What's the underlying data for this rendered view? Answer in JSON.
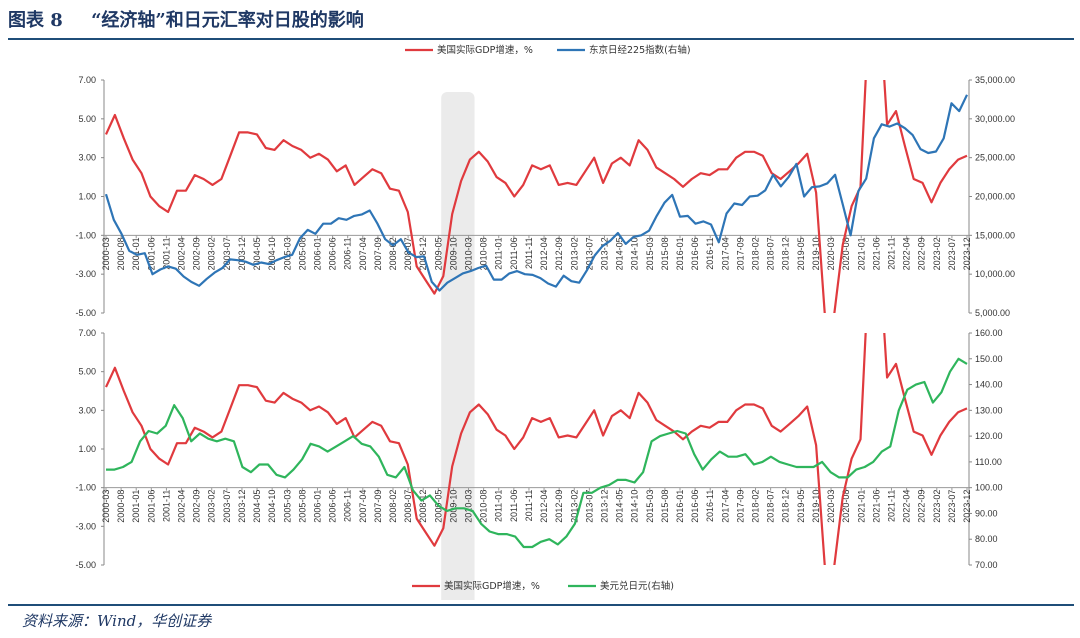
{
  "header": {
    "figure_label": "图表 8",
    "title": "“经济轴”和日元汇率对日股的影响"
  },
  "source": "资料来源：Wind，华创证券",
  "colors": {
    "red": "#e03a3e",
    "blue": "#2e75b6",
    "green": "#2fb55c",
    "title": "#1f3864",
    "shade": "#ebebeb"
  },
  "chart_data": [
    {
      "type": "line",
      "panel": "top",
      "legend": [
        "美国实际GDP增速，%",
        "东京日经225指数(右轴)"
      ],
      "left_ylim": [
        -5,
        7
      ],
      "left_ticks": [
        "7.00",
        "5.00",
        "3.00",
        "1.00",
        "-1.00",
        "-3.00",
        "-5.00"
      ],
      "right_ylim": [
        5000,
        35000
      ],
      "right_ticks": [
        "35,000.00",
        "30,000.00",
        "25,000.00",
        "20,000.00",
        "15,000.00",
        "10,000.00",
        "5,000.00"
      ],
      "x_labels": [
        "2000-03",
        "2000-08",
        "2001-01",
        "2001-06",
        "2001-11",
        "2002-04",
        "2002-09",
        "2003-02",
        "2003-07",
        "2003-12",
        "2004-05",
        "2004-10",
        "2005-03",
        "2005-08",
        "2006-01",
        "2006-06",
        "2006-11",
        "2007-04",
        "2007-09",
        "2008-02",
        "2008-07",
        "2008-12",
        "2009-05",
        "2009-10",
        "2010-03",
        "2010-08",
        "2011-01",
        "2011-06",
        "2011-11",
        "2012-04",
        "2012-09",
        "2013-02",
        "2013-07",
        "2013-12",
        "2014-05",
        "2014-10",
        "2015-03",
        "2015-08",
        "2016-01",
        "2016-06",
        "2016-11",
        "2017-04",
        "2017-09",
        "2018-02",
        "2018-07",
        "2018-12",
        "2019-05",
        "2019-10",
        "2020-03",
        "2020-08",
        "2021-01",
        "2021-06",
        "2021-11",
        "2022-04",
        "2022-09",
        "2023-02",
        "2023-07",
        "2023-12"
      ],
      "recession_shade": {
        "from": "2008-12",
        "to": "2010-03"
      },
      "series": [
        {
          "name": "美国实际GDP增速，%",
          "axis": "left",
          "color": "#e03a3e",
          "values": [
            4.2,
            5.2,
            4.0,
            2.9,
            2.2,
            1.0,
            0.5,
            0.2,
            1.3,
            1.3,
            2.1,
            1.9,
            1.6,
            1.9,
            3.1,
            4.3,
            4.3,
            4.2,
            3.5,
            3.4,
            3.9,
            3.6,
            3.4,
            3.0,
            3.2,
            2.9,
            2.3,
            2.6,
            1.6,
            2.0,
            2.4,
            2.2,
            1.4,
            1.3,
            0.2,
            -2.6,
            -3.3,
            -4.0,
            -3.1,
            0.1,
            1.8,
            2.9,
            3.3,
            2.8,
            2.0,
            1.7,
            1.0,
            1.6,
            2.6,
            2.4,
            2.6,
            1.6,
            1.7,
            1.6,
            2.3,
            3.0,
            1.7,
            2.7,
            3.0,
            2.6,
            3.9,
            3.4,
            2.5,
            2.2,
            1.9,
            1.5,
            1.9,
            2.2,
            2.1,
            2.4,
            2.4,
            3.0,
            3.3,
            3.3,
            3.1,
            2.2,
            1.9,
            2.3,
            2.7,
            3.2,
            1.2,
            -5.2,
            -5.2,
            -1.5,
            0.5,
            1.5,
            11.0,
            12.0,
            4.7,
            5.4,
            3.6,
            1.9,
            1.7,
            0.7,
            1.7,
            2.4,
            2.9,
            3.1
          ]
        },
        {
          "name": "东京日经225指数(右轴)",
          "axis": "right",
          "color": "#2e75b6",
          "values": [
            20300,
            17000,
            15200,
            13000,
            12500,
            12700,
            10000,
            10600,
            11000,
            10700,
            9700,
            9000,
            8500,
            9400,
            10200,
            10800,
            11900,
            11800,
            11600,
            11200,
            11500,
            11300,
            11800,
            12200,
            12500,
            14600,
            15700,
            15200,
            16500,
            16500,
            17200,
            17000,
            17500,
            17700,
            18200,
            16500,
            14500,
            13700,
            14500,
            12800,
            12200,
            12300,
            9000,
            7900,
            8900,
            9500,
            10100,
            10400,
            10800,
            11100,
            9300,
            9300,
            10100,
            10400,
            10000,
            9900,
            9500,
            8800,
            8400,
            9800,
            9100,
            8900,
            10500,
            12400,
            13600,
            14300,
            15300,
            13900,
            14800,
            15000,
            15600,
            17500,
            19200,
            20200,
            17400,
            17500,
            16500,
            16800,
            16400,
            14100,
            17800,
            19100,
            18900,
            20000,
            20100,
            20800,
            22800,
            21300,
            22500,
            24200,
            20000,
            21200,
            21300,
            21700,
            22800,
            18900,
            15000,
            20700,
            22300,
            27500,
            29300,
            29000,
            29400,
            28800,
            27900,
            26100,
            25600,
            25800,
            27500,
            32000,
            31000,
            33100
          ]
        }
      ]
    },
    {
      "type": "line",
      "panel": "bottom",
      "legend": [
        "美国实际GDP增速，%",
        "美元兑日元(右轴)"
      ],
      "left_ylim": [
        -5,
        7
      ],
      "left_ticks": [
        "7.00",
        "5.00",
        "3.00",
        "1.00",
        "-1.00",
        "-3.00",
        "-5.00"
      ],
      "right_ylim": [
        70,
        160
      ],
      "right_ticks": [
        "160.00",
        "150.00",
        "140.00",
        "130.00",
        "120.00",
        "110.00",
        "100.00",
        "90.00",
        "80.00",
        "70.00"
      ],
      "x_labels": [
        "2000-03",
        "2000-08",
        "2001-01",
        "2001-06",
        "2001-11",
        "2002-04",
        "2002-09",
        "2003-02",
        "2003-07",
        "2003-12",
        "2004-05",
        "2004-10",
        "2005-03",
        "2005-08",
        "2006-01",
        "2006-06",
        "2006-11",
        "2007-04",
        "2007-09",
        "2008-02",
        "2008-07",
        "2008-12",
        "2009-05",
        "2009-10",
        "2010-03",
        "2010-08",
        "2011-01",
        "2011-06",
        "2011-11",
        "2012-04",
        "2012-09",
        "2013-02",
        "2013-07",
        "2013-12",
        "2014-05",
        "2014-10",
        "2015-03",
        "2015-08",
        "2016-01",
        "2016-06",
        "2016-11",
        "2017-04",
        "2017-09",
        "2018-02",
        "2018-07",
        "2018-12",
        "2019-05",
        "2019-10",
        "2020-03",
        "2020-08",
        "2021-01",
        "2021-06",
        "2021-11",
        "2022-04",
        "2022-09",
        "2023-02",
        "2023-07",
        "2023-12"
      ],
      "recession_shade": {
        "from": "2008-12",
        "to": "2010-03"
      },
      "series": [
        {
          "name": "美国实际GDP增速，%",
          "axis": "left",
          "color": "#e03a3e",
          "values": [
            4.2,
            5.2,
            4.0,
            2.9,
            2.2,
            1.0,
            0.5,
            0.2,
            1.3,
            1.3,
            2.1,
            1.9,
            1.6,
            1.9,
            3.1,
            4.3,
            4.3,
            4.2,
            3.5,
            3.4,
            3.9,
            3.6,
            3.4,
            3.0,
            3.2,
            2.9,
            2.3,
            2.6,
            1.6,
            2.0,
            2.4,
            2.2,
            1.4,
            1.3,
            0.2,
            -2.6,
            -3.3,
            -4.0,
            -3.1,
            0.1,
            1.8,
            2.9,
            3.3,
            2.8,
            2.0,
            1.7,
            1.0,
            1.6,
            2.6,
            2.4,
            2.6,
            1.6,
            1.7,
            1.6,
            2.3,
            3.0,
            1.7,
            2.7,
            3.0,
            2.6,
            3.9,
            3.4,
            2.5,
            2.2,
            1.9,
            1.5,
            1.9,
            2.2,
            2.1,
            2.4,
            2.4,
            3.0,
            3.3,
            3.3,
            3.1,
            2.2,
            1.9,
            2.3,
            2.7,
            3.2,
            1.2,
            -5.2,
            -5.2,
            -1.5,
            0.5,
            1.5,
            11.0,
            12.0,
            4.7,
            5.4,
            3.6,
            1.9,
            1.7,
            0.7,
            1.7,
            2.4,
            2.9,
            3.1
          ]
        },
        {
          "name": "美元兑日元(右轴)",
          "axis": "right",
          "color": "#2fb55c",
          "values": [
            107,
            107,
            108,
            110,
            118,
            122,
            121,
            124,
            132,
            127,
            118,
            121,
            119,
            118,
            119,
            118,
            108,
            106,
            109,
            109,
            105,
            104,
            107,
            111,
            117,
            116,
            114,
            116,
            118,
            120,
            117,
            116,
            112,
            105,
            104,
            108,
            99,
            95,
            97,
            93,
            91,
            92,
            92,
            91,
            86,
            83,
            82,
            82,
            81,
            77,
            77,
            79,
            80,
            78,
            81,
            86,
            98,
            98,
            100,
            101,
            103,
            103,
            102,
            106,
            118,
            120,
            121,
            122,
            121,
            113,
            107,
            111,
            114,
            112,
            112,
            113,
            109,
            110,
            112,
            110,
            109,
            108,
            108,
            108,
            110,
            106,
            104,
            104,
            107,
            108,
            110,
            114,
            116,
            130,
            138,
            140,
            141,
            133,
            137,
            145,
            150,
            148
          ]
        }
      ]
    }
  ]
}
